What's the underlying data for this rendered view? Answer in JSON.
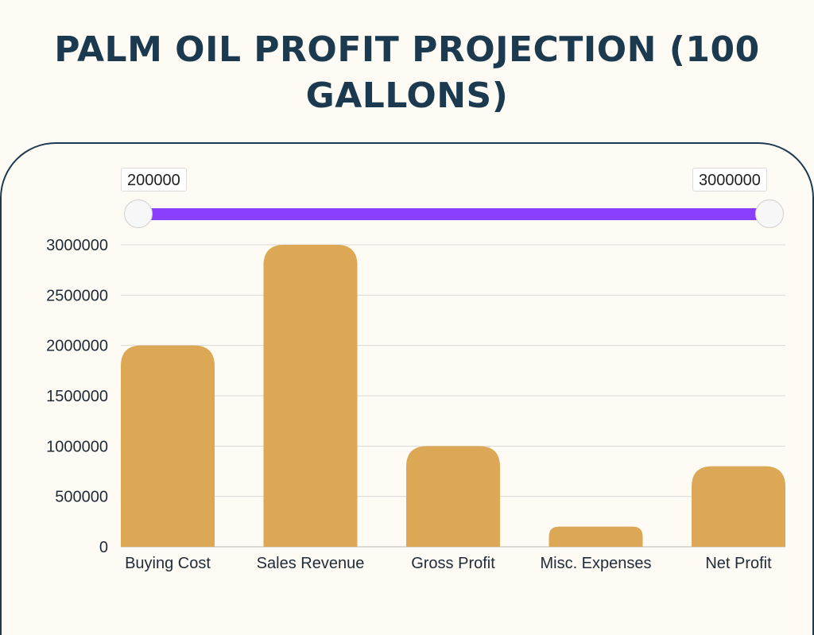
{
  "title": "PALM OIL PROFIT PROJECTION (100 GALLONS)",
  "range_filter": {
    "min_label": "200000",
    "max_label": "3000000",
    "min": 200000,
    "max": 3000000
  },
  "colors": {
    "bar": "#dca856",
    "title": "#1c3a4f",
    "range_track": "#8a3ffc",
    "gridline": "#d9d9d9",
    "axis_text": "#1f2b38"
  },
  "chart_data": {
    "type": "bar",
    "title": "PALM OIL PROFIT PROJECTION (100 GALLONS)",
    "xlabel": "",
    "ylabel": "",
    "categories": [
      "Buying Cost",
      "Sales Revenue",
      "Gross Profit",
      "Misc. Expenses",
      "Net Profit"
    ],
    "values": [
      2000000,
      3000000,
      1000000,
      200000,
      800000
    ],
    "ylim": [
      0,
      3000000
    ],
    "yticks": [
      0,
      500000,
      1000000,
      1500000,
      2000000,
      2500000,
      3000000
    ],
    "ytick_labels": [
      "0",
      "500000",
      "1000000",
      "1500000",
      "2000000",
      "2500000",
      "3000000"
    ],
    "grid": true,
    "legend": "none"
  }
}
